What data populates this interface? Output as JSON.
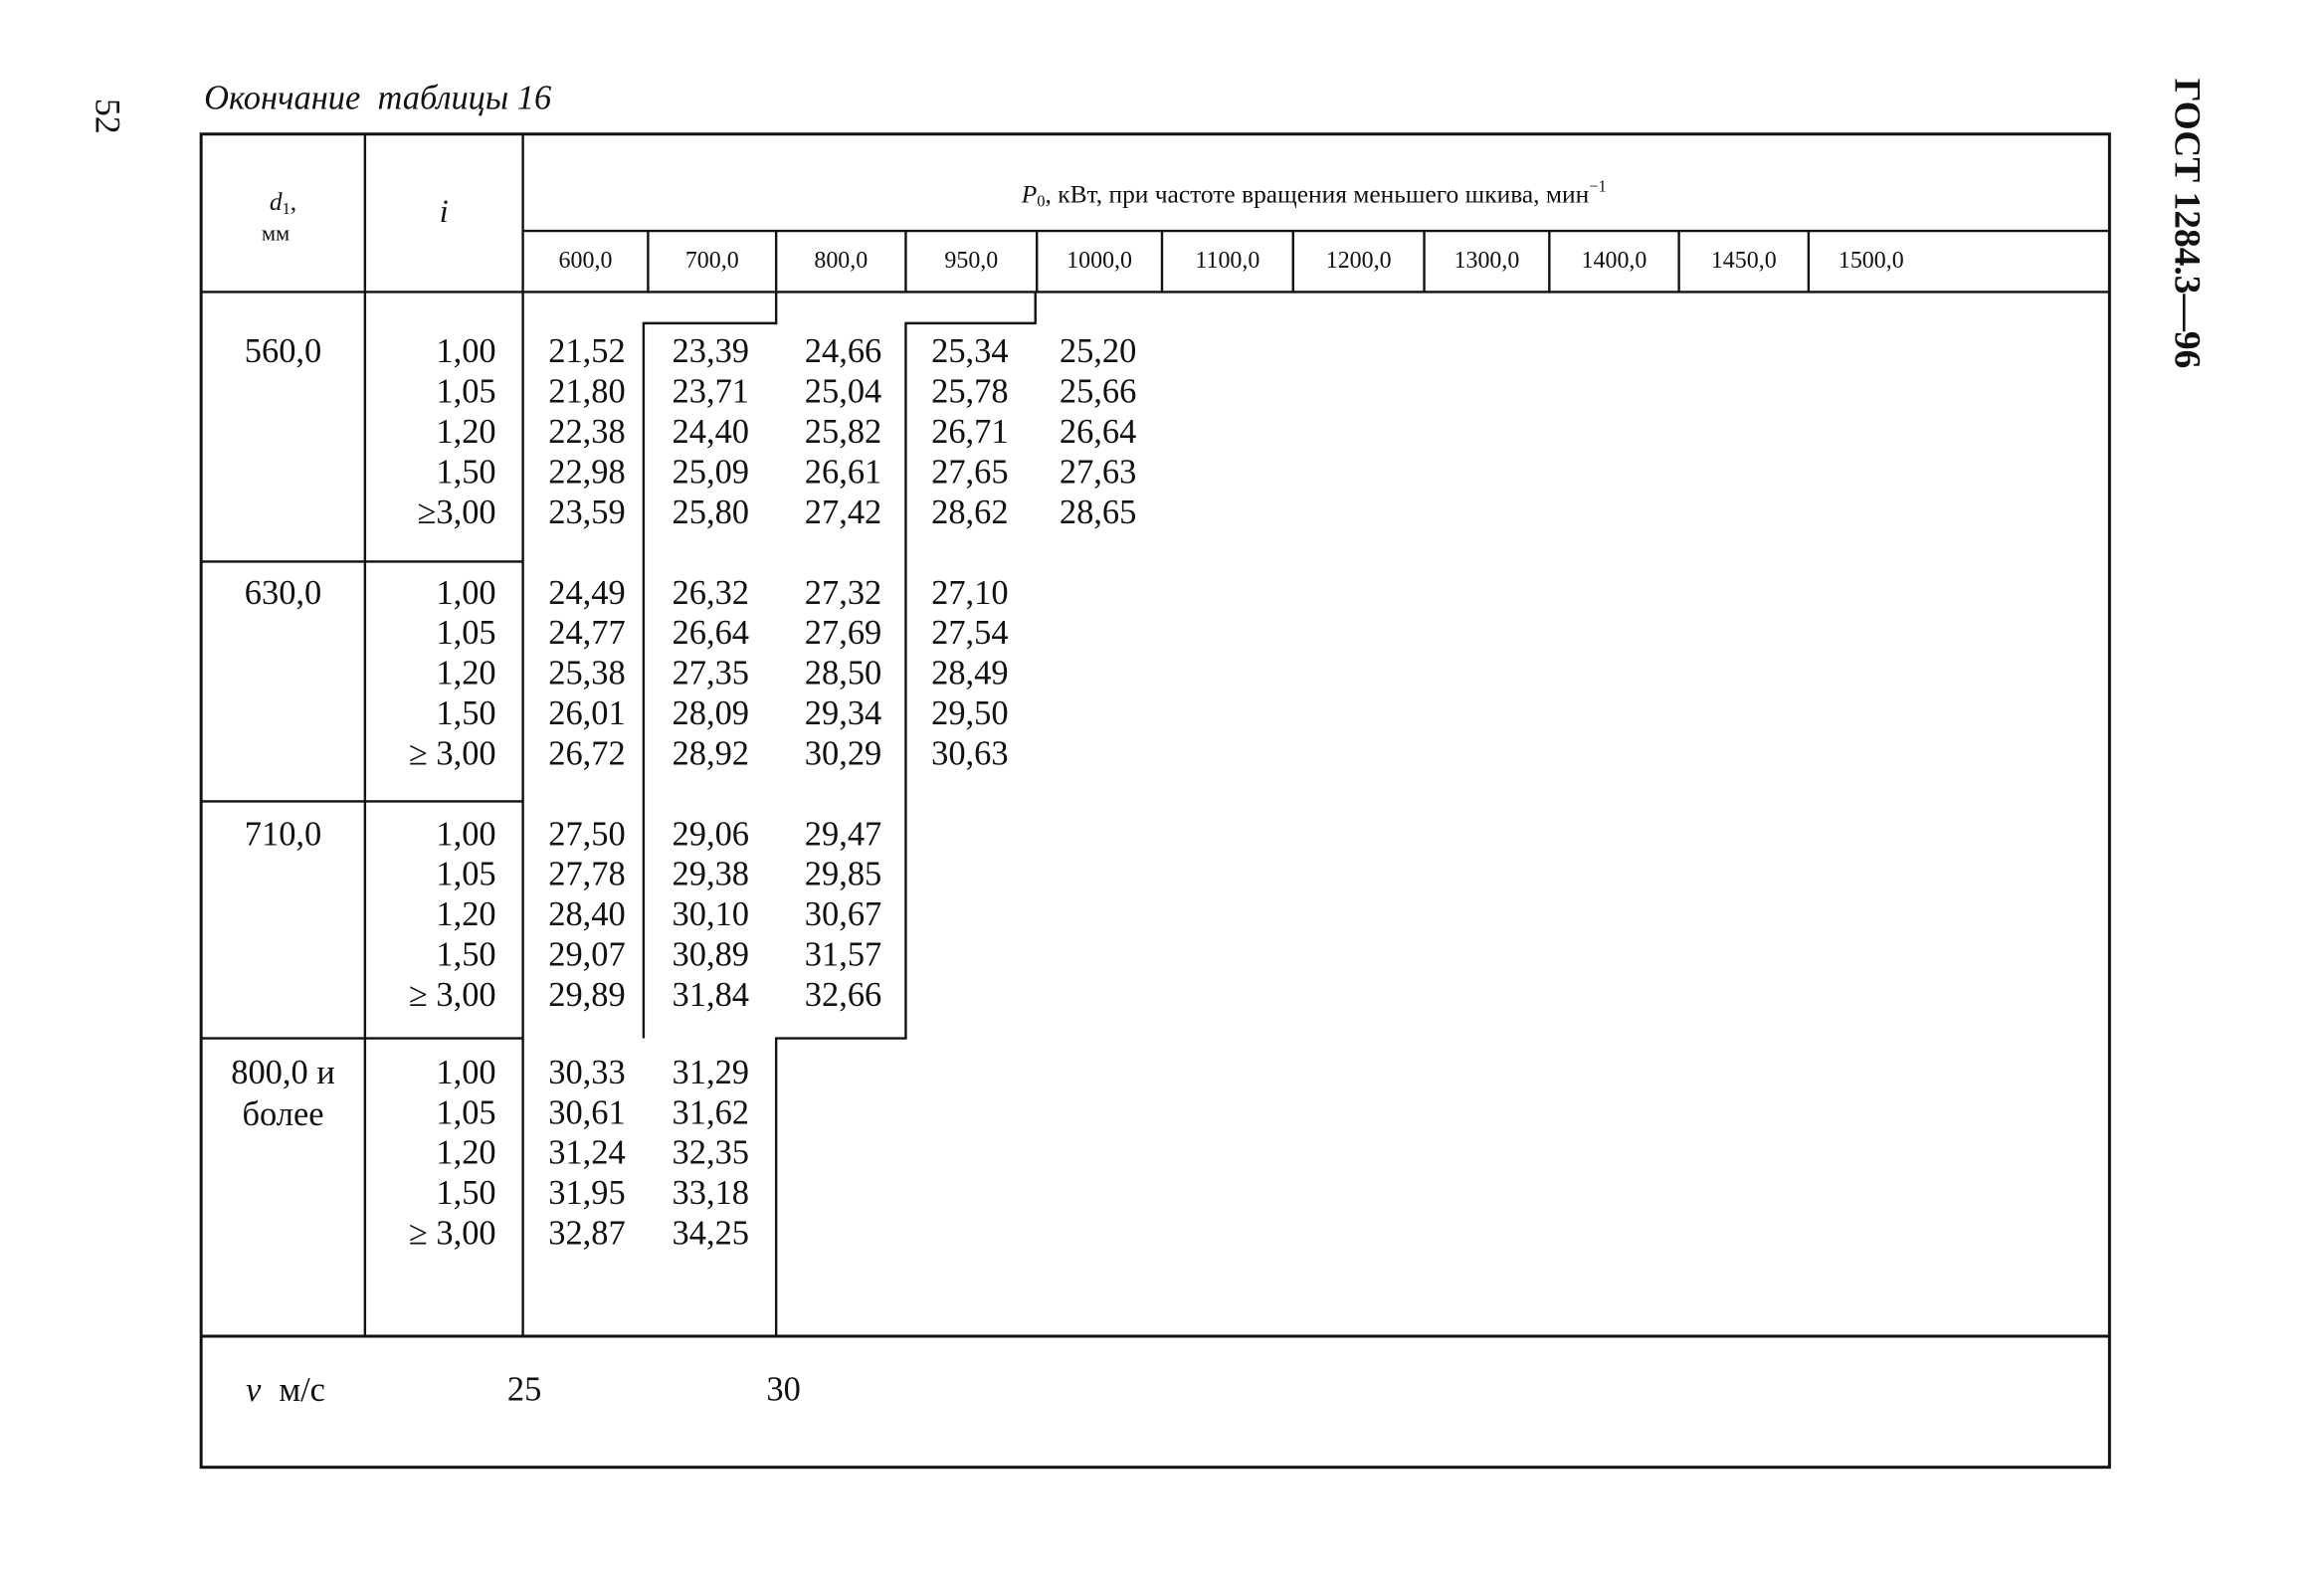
{
  "page_number": "52",
  "running_head": "ГОСТ 1284.3—96",
  "caption": "Окончание  таблицы 16",
  "table": {
    "header": {
      "d": {
        "symbol": "d",
        "subscript": "1",
        "punct": ",",
        "unit": "мм"
      },
      "i": "i",
      "p": {
        "symbol": "P",
        "subscript": "0",
        "text": ", кВт, при частоте вращения меньшего шкива, мин",
        "superscript": "−1"
      },
      "frequencies": [
        "600,0",
        "700,0",
        "800,0",
        "950,0",
        "1000,0",
        "1100,0",
        "1200,0",
        "1300,0",
        "1400,0",
        "1450,0",
        "1500,0"
      ]
    },
    "groups": [
      {
        "d": [
          "560,0"
        ],
        "rows": [
          {
            "i": "1,00",
            "values": [
              "21,52",
              "23,39",
              "24,66",
              "25,34",
              "25,20"
            ]
          },
          {
            "i": "1,05",
            "values": [
              "21,80",
              "23,71",
              "25,04",
              "25,78",
              "25,66"
            ]
          },
          {
            "i": "1,20",
            "values": [
              "22,38",
              "24,40",
              "25,82",
              "26,71",
              "26,64"
            ]
          },
          {
            "i": "1,50",
            "values": [
              "22,98",
              "25,09",
              "26,61",
              "27,65",
              "27,63"
            ]
          },
          {
            "i": "≥3,00",
            "values": [
              "23,59",
              "25,80",
              "27,42",
              "28,62",
              "28,65"
            ]
          }
        ]
      },
      {
        "d": [
          "630,0"
        ],
        "rows": [
          {
            "i": "1,00",
            "values": [
              "24,49",
              "26,32",
              "27,32",
              "27,10"
            ]
          },
          {
            "i": "1,05",
            "values": [
              "24,77",
              "26,64",
              "27,69",
              "27,54"
            ]
          },
          {
            "i": "1,20",
            "values": [
              "25,38",
              "27,35",
              "28,50",
              "28,49"
            ]
          },
          {
            "i": "1,50",
            "values": [
              "26,01",
              "28,09",
              "29,34",
              "29,50"
            ]
          },
          {
            "i": "≥ 3,00",
            "values": [
              "26,72",
              "28,92",
              "30,29",
              "30,63"
            ]
          }
        ]
      },
      {
        "d": [
          "710,0"
        ],
        "rows": [
          {
            "i": "1,00",
            "values": [
              "27,50",
              "29,06",
              "29,47"
            ]
          },
          {
            "i": "1,05",
            "values": [
              "27,78",
              "29,38",
              "29,85"
            ]
          },
          {
            "i": "1,20",
            "values": [
              "28,40",
              "30,10",
              "30,67"
            ]
          },
          {
            "i": "1,50",
            "values": [
              "29,07",
              "30,89",
              "31,57"
            ]
          },
          {
            "i": "≥ 3,00",
            "values": [
              "29,89",
              "31,84",
              "32,66"
            ]
          }
        ]
      },
      {
        "d": [
          "800,0 и",
          "более"
        ],
        "rows": [
          {
            "i": "1,00",
            "values": [
              "30,33",
              "31,29"
            ]
          },
          {
            "i": "1,05",
            "values": [
              "30,61",
              "31,62"
            ]
          },
          {
            "i": "1,20",
            "values": [
              "31,24",
              "32,35"
            ]
          },
          {
            "i": "1,50",
            "values": [
              "31,95",
              "33,18"
            ]
          },
          {
            "i": "≥ 3,00",
            "values": [
              "32,87",
              "34,25"
            ]
          }
        ]
      }
    ],
    "footer": {
      "symbol": "v",
      "unit": "м/с",
      "values": [
        "25",
        "30"
      ]
    }
  }
}
